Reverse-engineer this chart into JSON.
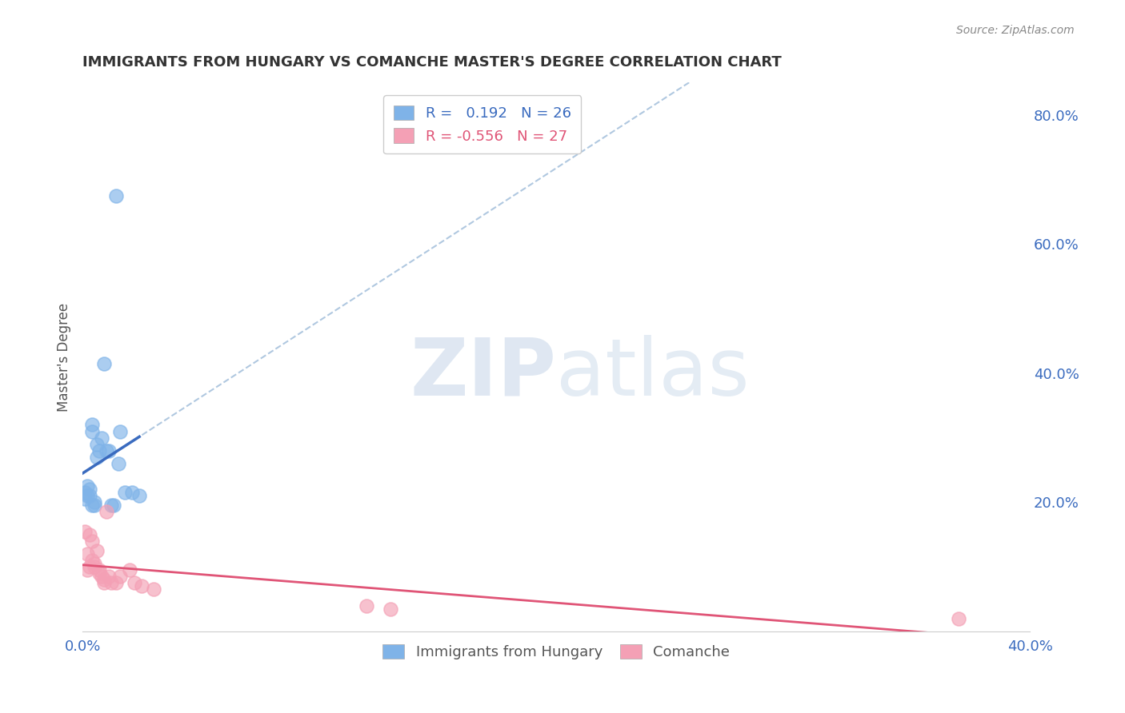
{
  "title": "IMMIGRANTS FROM HUNGARY VS COMANCHE MASTER'S DEGREE CORRELATION CHART",
  "source": "Source: ZipAtlas.com",
  "ylabel": "Master's Degree",
  "xlim": [
    0.0,
    0.4
  ],
  "ylim": [
    0.0,
    0.85
  ],
  "x_ticks": [
    0.0,
    0.1,
    0.2,
    0.3,
    0.4
  ],
  "x_tick_labels": [
    "0.0%",
    "",
    "",
    "",
    "40.0%"
  ],
  "y_ticks_right": [
    0.2,
    0.4,
    0.6,
    0.8
  ],
  "y_tick_labels_right": [
    "20.0%",
    "40.0%",
    "60.0%",
    "80.0%"
  ],
  "hungary_R": 0.192,
  "hungary_N": 26,
  "comanche_R": -0.556,
  "comanche_N": 27,
  "hungary_color": "#7fb3e8",
  "comanche_color": "#f4a0b5",
  "hungary_line_color": "#3a6bbf",
  "comanche_line_color": "#e05577",
  "trendline_dashed_color": "#b0c8e0",
  "watermark_zip": "ZIP",
  "watermark_atlas": "atlas",
  "hungary_x": [
    0.001,
    0.001,
    0.002,
    0.002,
    0.003,
    0.003,
    0.004,
    0.004,
    0.004,
    0.005,
    0.005,
    0.006,
    0.006,
    0.007,
    0.008,
    0.009,
    0.01,
    0.011,
    0.012,
    0.013,
    0.014,
    0.015,
    0.016,
    0.018,
    0.021,
    0.024
  ],
  "hungary_y": [
    0.205,
    0.215,
    0.21,
    0.225,
    0.22,
    0.21,
    0.32,
    0.31,
    0.195,
    0.2,
    0.195,
    0.29,
    0.27,
    0.28,
    0.3,
    0.415,
    0.28,
    0.28,
    0.195,
    0.195,
    0.675,
    0.26,
    0.31,
    0.215,
    0.215,
    0.21
  ],
  "comanche_x": [
    0.001,
    0.002,
    0.002,
    0.003,
    0.003,
    0.004,
    0.004,
    0.005,
    0.005,
    0.006,
    0.007,
    0.007,
    0.008,
    0.009,
    0.009,
    0.01,
    0.011,
    0.012,
    0.014,
    0.016,
    0.02,
    0.022,
    0.025,
    0.03,
    0.12,
    0.13,
    0.37
  ],
  "comanche_y": [
    0.155,
    0.12,
    0.095,
    0.1,
    0.15,
    0.14,
    0.11,
    0.105,
    0.1,
    0.125,
    0.095,
    0.09,
    0.085,
    0.08,
    0.075,
    0.185,
    0.085,
    0.075,
    0.075,
    0.085,
    0.095,
    0.075,
    0.07,
    0.065,
    0.04,
    0.035,
    0.02
  ]
}
